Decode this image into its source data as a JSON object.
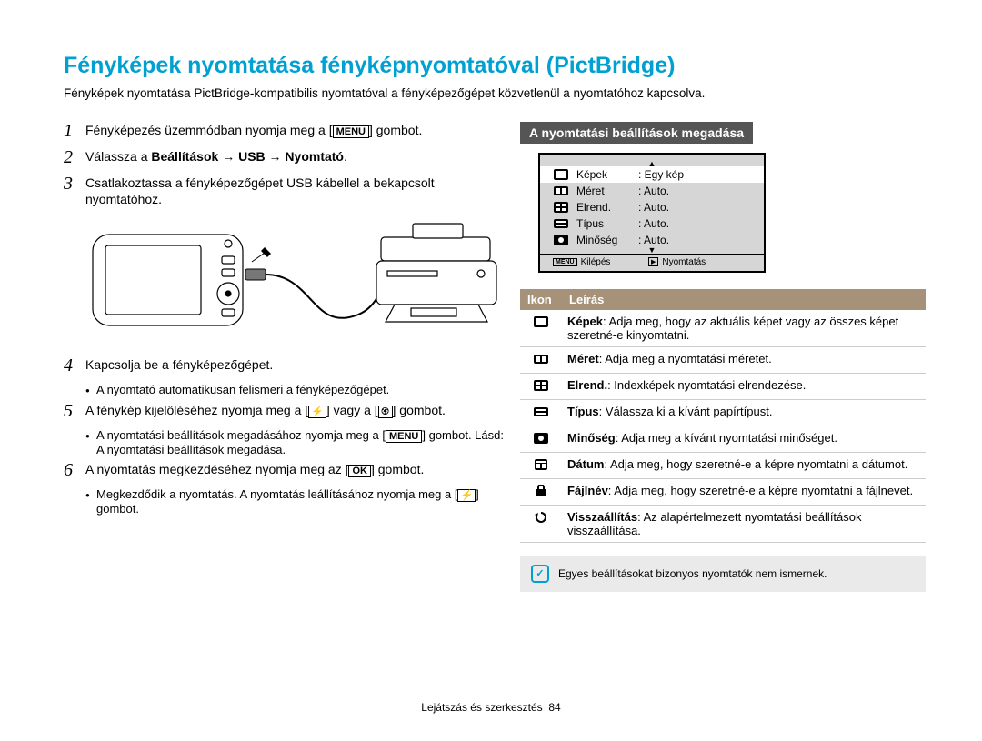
{
  "title": "Fényképek nyomtatása fényképnyomtatóval (PictBridge)",
  "intro": "Fényképek nyomtatása PictBridge-kompatibilis nyomtatóval a fényképezőgépet közvetlenül a nyomtatóhoz kapcsolva.",
  "steps": {
    "s1_a": "Fényképezés üzemmódban nyomja meg a [",
    "s1_key": "MENU",
    "s1_b": "] gombot.",
    "s2_a": "Válassza a ",
    "s2_b": "Beállítások → USB → Nyomtató",
    "s2_c": ".",
    "s3": "Csatlakoztassa a fényképezőgépet USB kábellel a bekapcsolt nyomtatóhoz.",
    "s4": "Kapcsolja be a fényképezőgépet.",
    "s4_bul": "A nyomtató automatikusan felismeri a fényképezőgépet.",
    "s5_a": "A fénykép kijelöléséhez nyomja meg a [",
    "s5_b": "] vagy a [",
    "s5_c": "] gombot.",
    "s5_bul_a": "A nyomtatási beállítások megadásához nyomja meg a [",
    "s5_bul_key": "MENU",
    "s5_bul_b": "] gombot. Lásd: A nyomtatási beállítások megadása.",
    "s6_a": "A nyomtatás megkezdéséhez nyomja meg az [",
    "s6_key": "OK",
    "s6_b": "] gombot.",
    "s6_bul_a": "Megkezdődik a nyomtatás. A nyomtatás leállításához nyomja meg a [",
    "s6_bul_b": "] gombot."
  },
  "section_head": "A nyomtatási beállítások megadása",
  "screen": {
    "rows": [
      {
        "label": "Képek",
        "value": "Egy kép"
      },
      {
        "label": "Méret",
        "value": "Auto."
      },
      {
        "label": "Elrend.",
        "value": "Auto."
      },
      {
        "label": "Típus",
        "value": "Auto."
      },
      {
        "label": "Minőség",
        "value": "Auto."
      }
    ],
    "foot_left": "Kilépés",
    "foot_left_key": "MENU",
    "foot_right": "Nyomtatás"
  },
  "table": {
    "h1": "Ikon",
    "h2": "Leírás",
    "rows": [
      {
        "b": "Képek",
        "t": ": Adja meg, hogy az aktuális képet vagy az összes képet szeretné-e kinyomtatni."
      },
      {
        "b": "Méret",
        "t": ": Adja meg a nyomtatási méretet."
      },
      {
        "b": "Elrend.",
        "t": ": Indexképek nyomtatási elrendezése."
      },
      {
        "b": "Típus",
        "t": ": Válassza ki a kívánt papírtípust."
      },
      {
        "b": "Minőség",
        "t": ": Adja meg a kívánt nyomtatási minőséget."
      },
      {
        "b": "Dátum",
        "t": ": Adja meg, hogy szeretné-e a képre nyomtatni a dátumot."
      },
      {
        "b": "Fájlnév",
        "t": ": Adja meg, hogy szeretné-e a képre nyomtatni a fájlnevet."
      },
      {
        "b": "Visszaállítás",
        "t": ": Az alapértelmezett nyomtatási beállítások visszaállítása."
      }
    ]
  },
  "note": "Egyes beállításokat bizonyos nyomtatók nem ismernek.",
  "footer_label": "Lejátszás és szerkesztés",
  "footer_page": "84",
  "colors": {
    "accent": "#00a0d2",
    "tab_head": "#a69279",
    "dark_head": "#555555",
    "note_bg": "#eaeaea"
  }
}
